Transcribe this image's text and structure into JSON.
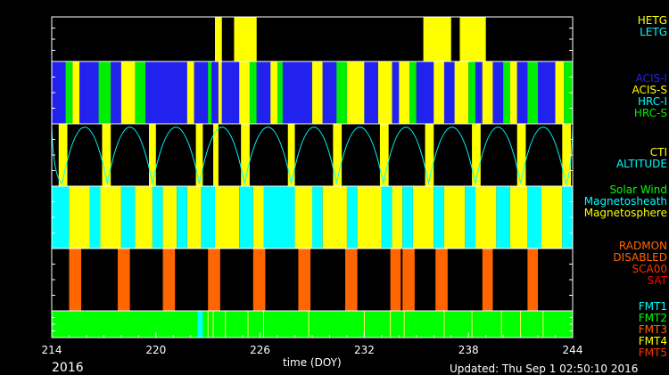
{
  "chart_data": {
    "type": "timeline",
    "x": {
      "label": "time (DOY)",
      "range": [
        214,
        244
      ],
      "ticks": [
        "214",
        "220",
        "226",
        "232",
        "238",
        "244"
      ]
    },
    "year": "2016",
    "updated": "Updated: Thu Sep  1 02:50:10 2016",
    "panels": [
      {
        "id": "grating",
        "legend": [
          {
            "label": "HETG",
            "color": "#ffff00"
          },
          {
            "label": "LETG",
            "color": "#00ffff"
          }
        ],
        "segments": [
          {
            "state": "HETG",
            "start": 223.4,
            "end": 223.8
          },
          {
            "state": "HETG",
            "start": 224.5,
            "end": 225.8
          },
          {
            "state": "HETG",
            "start": 235.4,
            "end": 237.0
          },
          {
            "state": "HETG",
            "start": 237.5,
            "end": 239.0
          }
        ]
      },
      {
        "id": "instrument",
        "legend": [
          {
            "label": "ACIS-I",
            "color": "#2222ee"
          },
          {
            "label": "ACIS-S",
            "color": "#ffff00"
          },
          {
            "label": "HRC-I",
            "color": "#00ffff"
          },
          {
            "label": "HRC-S",
            "color": "#00ee00"
          }
        ],
        "segments": [
          {
            "state": "ACIS-I",
            "start": 214.0,
            "end": 214.8
          },
          {
            "state": "HRC-S",
            "start": 214.8,
            "end": 215.2
          },
          {
            "state": "ACIS-S",
            "start": 215.2,
            "end": 215.6
          },
          {
            "state": "ACIS-I",
            "start": 215.6,
            "end": 216.7
          },
          {
            "state": "HRC-S",
            "start": 216.7,
            "end": 217.4
          },
          {
            "state": "ACIS-I",
            "start": 217.4,
            "end": 218.0
          },
          {
            "state": "ACIS-S",
            "start": 218.0,
            "end": 218.8
          },
          {
            "state": "HRC-S",
            "start": 218.8,
            "end": 219.4
          },
          {
            "state": "ACIS-I",
            "start": 219.4,
            "end": 221.8
          },
          {
            "state": "ACIS-S",
            "start": 221.8,
            "end": 222.2
          },
          {
            "state": "ACIS-I",
            "start": 222.2,
            "end": 223.0
          },
          {
            "state": "HRC-S",
            "start": 223.0,
            "end": 223.2
          },
          {
            "state": "ACIS-I",
            "start": 223.2,
            "end": 223.6
          },
          {
            "state": "ACIS-S",
            "start": 223.6,
            "end": 223.8
          },
          {
            "state": "ACIS-I",
            "start": 223.8,
            "end": 224.8
          },
          {
            "state": "ACIS-S",
            "start": 224.8,
            "end": 225.4
          },
          {
            "state": "HRC-S",
            "start": 225.4,
            "end": 225.8
          },
          {
            "state": "ACIS-I",
            "start": 225.8,
            "end": 226.6
          },
          {
            "state": "ACIS-S",
            "start": 226.6,
            "end": 227.0
          },
          {
            "state": "HRC-S",
            "start": 227.0,
            "end": 227.3
          },
          {
            "state": "ACIS-I",
            "start": 227.3,
            "end": 229.0
          },
          {
            "state": "ACIS-S",
            "start": 229.0,
            "end": 229.6
          },
          {
            "state": "ACIS-I",
            "start": 229.6,
            "end": 230.4
          },
          {
            "state": "HRC-S",
            "start": 230.4,
            "end": 231.0
          },
          {
            "state": "ACIS-S",
            "start": 231.0,
            "end": 232.0
          },
          {
            "state": "ACIS-I",
            "start": 232.0,
            "end": 232.8
          },
          {
            "state": "ACIS-S",
            "start": 232.8,
            "end": 233.6
          },
          {
            "state": "ACIS-I",
            "start": 233.6,
            "end": 234.0
          },
          {
            "state": "ACIS-S",
            "start": 234.0,
            "end": 234.6
          },
          {
            "state": "HRC-S",
            "start": 234.6,
            "end": 235.0
          },
          {
            "state": "ACIS-I",
            "start": 235.0,
            "end": 236.0
          },
          {
            "state": "ACIS-S",
            "start": 236.0,
            "end": 236.6
          },
          {
            "state": "ACIS-I",
            "start": 236.6,
            "end": 237.2
          },
          {
            "state": "ACIS-S",
            "start": 237.2,
            "end": 238.0
          },
          {
            "state": "HRC-S",
            "start": 238.0,
            "end": 238.4
          },
          {
            "state": "ACIS-I",
            "start": 238.4,
            "end": 238.8
          },
          {
            "state": "ACIS-S",
            "start": 238.8,
            "end": 239.4
          },
          {
            "state": "ACIS-I",
            "start": 239.4,
            "end": 240.0
          },
          {
            "state": "HRC-S",
            "start": 240.0,
            "end": 240.4
          },
          {
            "state": "ACIS-S",
            "start": 240.4,
            "end": 240.8
          },
          {
            "state": "ACIS-I",
            "start": 240.8,
            "end": 241.4
          },
          {
            "state": "HRC-S",
            "start": 241.4,
            "end": 242.0
          },
          {
            "state": "ACIS-I",
            "start": 242.0,
            "end": 243.0
          },
          {
            "state": "ACIS-S",
            "start": 243.0,
            "end": 243.5
          },
          {
            "state": "HRC-S",
            "start": 243.5,
            "end": 244.0
          }
        ]
      },
      {
        "id": "cti",
        "legend": [
          {
            "label": "CTI",
            "color": "#ffff00"
          },
          {
            "label": "ALTITUDE",
            "color": "#00ffff"
          }
        ],
        "perigees": [
          214.6,
          217.2,
          219.8,
          222.5,
          225.1,
          227.8,
          230.4,
          233.1,
          235.7,
          238.4,
          241.0,
          243.6
        ],
        "cti_blocks": [
          {
            "start": 214.4,
            "end": 214.9
          },
          {
            "start": 216.9,
            "end": 217.4
          },
          {
            "start": 219.6,
            "end": 220.0
          },
          {
            "start": 222.3,
            "end": 222.7
          },
          {
            "start": 223.3,
            "end": 223.6
          },
          {
            "start": 224.9,
            "end": 225.4
          },
          {
            "start": 227.6,
            "end": 228.0
          },
          {
            "start": 230.2,
            "end": 230.7
          },
          {
            "start": 232.9,
            "end": 233.4
          },
          {
            "start": 235.5,
            "end": 236.0
          },
          {
            "start": 238.2,
            "end": 238.7
          },
          {
            "start": 240.8,
            "end": 241.3
          },
          {
            "start": 243.4,
            "end": 243.9
          }
        ]
      },
      {
        "id": "environment",
        "legend": [
          {
            "label": "Solar Wind",
            "color": "#00ff00"
          },
          {
            "label": "Magnetosheath",
            "color": "#00ffff"
          },
          {
            "label": "Magnetosphere",
            "color": "#ffff00"
          }
        ],
        "segments": [
          {
            "state": "Magnetosheath",
            "start": 214.0,
            "end": 215.0
          },
          {
            "state": "Magnetosphere",
            "start": 215.0,
            "end": 216.2
          },
          {
            "state": "Magnetosheath",
            "start": 216.2,
            "end": 216.8
          },
          {
            "state": "Magnetosphere",
            "start": 216.8,
            "end": 218.0
          },
          {
            "state": "Magnetosheath",
            "start": 218.0,
            "end": 218.8
          },
          {
            "state": "Magnetosphere",
            "start": 218.8,
            "end": 219.8
          },
          {
            "state": "Magnetosheath",
            "start": 219.8,
            "end": 220.4
          },
          {
            "state": "Magnetosphere",
            "start": 220.4,
            "end": 221.2
          },
          {
            "state": "Magnetosheath",
            "start": 221.2,
            "end": 221.8
          },
          {
            "state": "Magnetosphere",
            "start": 221.8,
            "end": 222.6
          },
          {
            "state": "Magnetosheath",
            "start": 222.6,
            "end": 223.4
          },
          {
            "state": "Magnetosphere",
            "start": 223.4,
            "end": 224.8
          },
          {
            "state": "Magnetosheath",
            "start": 224.8,
            "end": 225.6
          },
          {
            "state": "Magnetosphere",
            "start": 225.6,
            "end": 226.2
          },
          {
            "state": "Magnetosheath",
            "start": 226.2,
            "end": 228.0
          },
          {
            "state": "Magnetosphere",
            "start": 228.0,
            "end": 229.0
          },
          {
            "state": "Magnetosheath",
            "start": 229.0,
            "end": 229.6
          },
          {
            "state": "Magnetosphere",
            "start": 229.6,
            "end": 231.0
          },
          {
            "state": "Magnetosheath",
            "start": 231.0,
            "end": 231.6
          },
          {
            "state": "Magnetosphere",
            "start": 231.6,
            "end": 233.0
          },
          {
            "state": "Magnetosheath",
            "start": 233.0,
            "end": 233.6
          },
          {
            "state": "Magnetosphere",
            "start": 233.6,
            "end": 234.2
          },
          {
            "state": "Magnetosheath",
            "start": 234.2,
            "end": 234.8
          },
          {
            "state": "Magnetosphere",
            "start": 234.8,
            "end": 236.0
          },
          {
            "state": "Magnetosheath",
            "start": 236.0,
            "end": 236.6
          },
          {
            "state": "Magnetosphere",
            "start": 236.6,
            "end": 237.8
          },
          {
            "state": "Magnetosheath",
            "start": 237.8,
            "end": 238.4
          },
          {
            "state": "Magnetosphere",
            "start": 238.4,
            "end": 239.6
          },
          {
            "state": "Magnetosheath",
            "start": 239.6,
            "end": 240.4
          },
          {
            "state": "Magnetosphere",
            "start": 240.4,
            "end": 241.4
          },
          {
            "state": "Magnetosheath",
            "start": 241.4,
            "end": 242.2
          },
          {
            "state": "Magnetosphere",
            "start": 242.2,
            "end": 243.4
          },
          {
            "state": "Magnetosheath",
            "start": 243.4,
            "end": 244.0
          }
        ]
      },
      {
        "id": "radiation",
        "legend": [
          {
            "label": "RADMON",
            "color": "#ff6600"
          },
          {
            "label": "DISABLED",
            "color": "#ff6600"
          },
          {
            "label": "SCA00",
            "color": "#ff3300"
          },
          {
            "label": "SAT",
            "color": "#ff0000"
          }
        ],
        "segments": [
          {
            "state": "DISABLED",
            "start": 215.0,
            "end": 215.7
          },
          {
            "state": "DISABLED",
            "start": 217.8,
            "end": 218.5
          },
          {
            "state": "DISABLED",
            "start": 220.4,
            "end": 221.1
          },
          {
            "state": "DISABLED",
            "start": 223.0,
            "end": 223.7
          },
          {
            "state": "DISABLED",
            "start": 225.6,
            "end": 226.3
          },
          {
            "state": "DISABLED",
            "start": 228.2,
            "end": 228.9
          },
          {
            "state": "DISABLED",
            "start": 230.9,
            "end": 231.6
          },
          {
            "state": "DISABLED",
            "start": 233.5,
            "end": 234.1
          },
          {
            "state": "DISABLED",
            "start": 234.2,
            "end": 234.9
          },
          {
            "state": "DISABLED",
            "start": 236.1,
            "end": 236.8
          },
          {
            "state": "DISABLED",
            "start": 238.8,
            "end": 239.4
          },
          {
            "state": "DISABLED",
            "start": 241.4,
            "end": 242.0
          }
        ]
      },
      {
        "id": "format",
        "legend": [
          {
            "label": "FMT1",
            "color": "#00ffff"
          },
          {
            "label": "FMT2",
            "color": "#00ff00"
          },
          {
            "label": "FMT3",
            "color": "#ff6600"
          },
          {
            "label": "FMT4",
            "color": "#ffff00"
          },
          {
            "label": "FMT5",
            "color": "#ff3300"
          }
        ],
        "base": "FMT2",
        "segments": [
          {
            "state": "FMT1",
            "start": 222.4,
            "end": 222.7
          }
        ],
        "ticks": [
          223.0,
          223.3,
          224.0,
          225.3,
          226.2,
          228.8,
          232.0,
          233.5,
          234.3,
          236.6,
          238.2,
          239.9,
          241.0,
          242.3
        ]
      }
    ]
  }
}
